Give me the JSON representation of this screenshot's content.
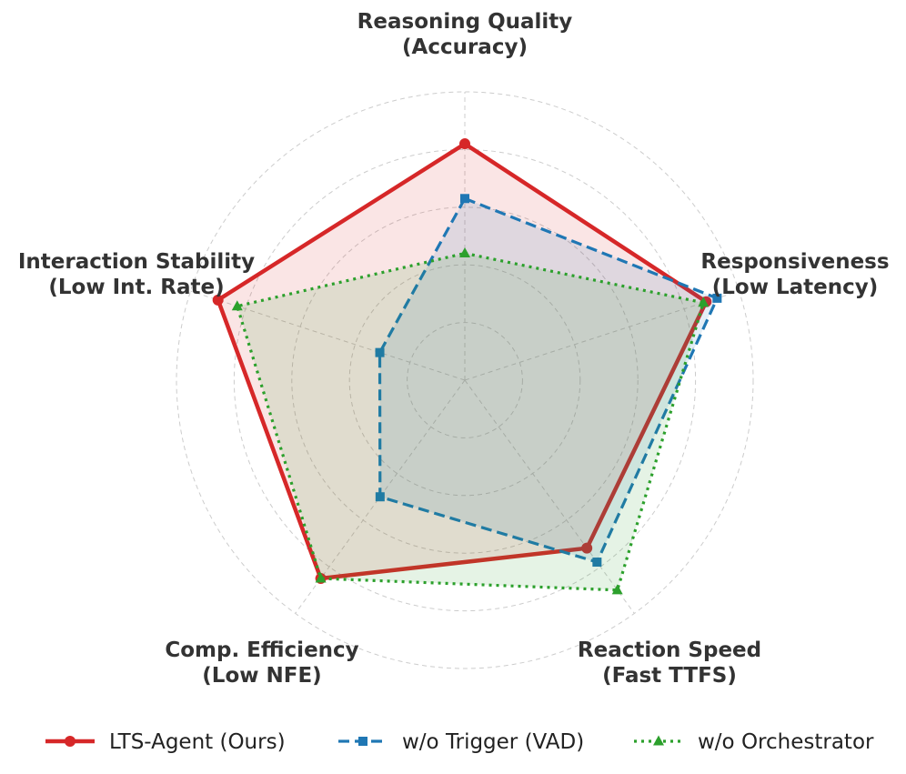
{
  "chart_data": {
    "type": "radar",
    "r_range": [
      0,
      1
    ],
    "grid": true,
    "axes": [
      {
        "line1": "Reasoning Quality",
        "line2": "(Accuracy)"
      },
      {
        "line1": "Responsiveness",
        "line2": "(Low Latency)"
      },
      {
        "line1": "Reaction Speed",
        "line2": "(Fast TTFS)"
      },
      {
        "line1": "Comp. Efficiency",
        "line2": "(Low NFE)"
      },
      {
        "line1": "Interaction Stability",
        "line2": "(Low Int. Rate)"
      }
    ],
    "series": [
      {
        "name": "LTS-Agent (Ours)",
        "values": [
          0.82,
          0.88,
          0.72,
          0.85,
          0.9
        ],
        "color": "#d62728",
        "dash": "solid",
        "marker": "circle"
      },
      {
        "name": "w/o Trigger (VAD)",
        "values": [
          0.63,
          0.92,
          0.78,
          0.5,
          0.31
        ],
        "color": "#1f77b4",
        "dash": "dashed",
        "marker": "square"
      },
      {
        "name": "w/o Orchestrator",
        "values": [
          0.44,
          0.87,
          0.9,
          0.85,
          0.83
        ],
        "color": "#2ca02c",
        "dash": "dotted",
        "marker": "triangle"
      }
    ],
    "legend_position": "bottom"
  }
}
